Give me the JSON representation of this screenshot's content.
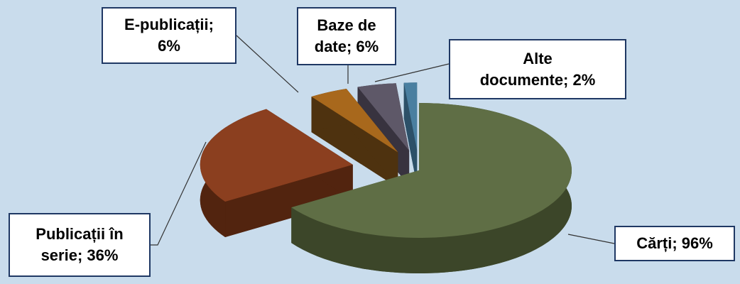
{
  "chart_data": {
    "type": "pie",
    "values": [
      96,
      36,
      6,
      6,
      2
    ],
    "value_labels": [
      "Cărți; 96%",
      "Publicații în\nserie; 36%",
      "E-publicații;\n6%",
      "Baze de\ndate; 6%",
      "Alte\ndocumente; 2%"
    ],
    "colors": [
      "#5f6e45",
      "#8b3f1f",
      "#a8681c",
      "#5e5868",
      "#4a7fa0"
    ],
    "side_colors": [
      "#3c4629",
      "#52240f",
      "#4e320f",
      "#38333f",
      "#2c5068"
    ]
  }
}
